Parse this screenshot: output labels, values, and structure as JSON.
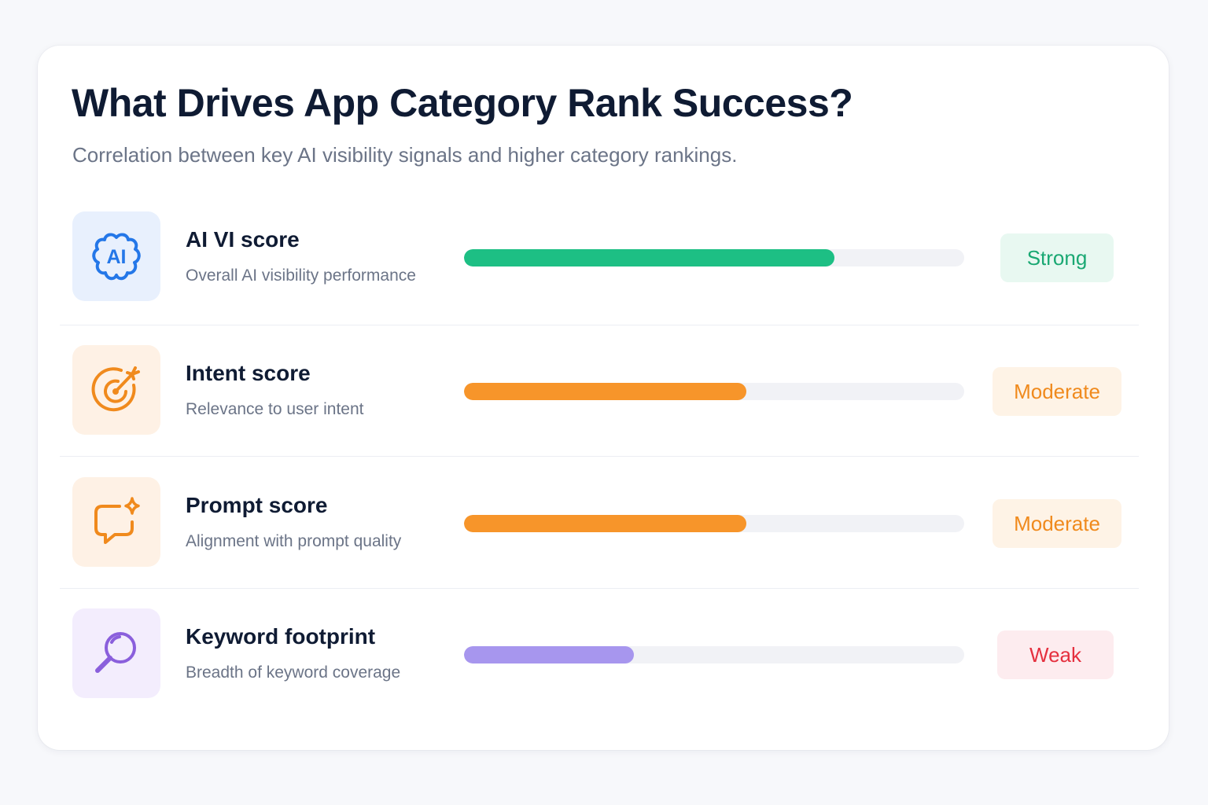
{
  "colors": {
    "strong": "#1dbf84",
    "moderate": "#f7952a",
    "weak": "#a796ee"
  },
  "chart_data": {
    "type": "bar",
    "orientation": "horizontal",
    "title": "What Drives App Category Rank Success?",
    "subtitle": "Correlation between key AI visibility signals and higher category rankings.",
    "xlim": [
      0,
      1
    ],
    "items": [
      {
        "name": "AI VI score",
        "description": "Overall AI visibility performance",
        "value": 0.74,
        "strength": "Strong",
        "icon": "ai-brain-icon",
        "bar_color": "#1dbf84",
        "badge_bg": "#e8f8f1",
        "badge_text_color": "#1aa873",
        "tile_bg": "#e8f0fd",
        "icon_color": "#2477e8"
      },
      {
        "name": "Intent score",
        "description": "Relevance to user intent",
        "value": 0.565,
        "strength": "Moderate",
        "icon": "target-icon",
        "bar_color": "#f7952a",
        "badge_bg": "#fef3e6",
        "badge_text_color": "#f08a1d",
        "tile_bg": "#fef1e5",
        "icon_color": "#f08a1d"
      },
      {
        "name": "Prompt score",
        "description": "Alignment with prompt quality",
        "value": 0.565,
        "strength": "Moderate",
        "icon": "chat-sparkle-icon",
        "bar_color": "#f7952a",
        "badge_bg": "#fef3e6",
        "badge_text_color": "#f08a1d",
        "tile_bg": "#fef1e5",
        "icon_color": "#f08a1d"
      },
      {
        "name": "Keyword footprint",
        "description": "Breadth of keyword coverage",
        "value": 0.34,
        "strength": "Weak",
        "icon": "search-icon",
        "bar_color": "#a796ee",
        "badge_bg": "#fdecef",
        "badge_text_color": "#e5303f",
        "tile_bg": "#f3edfd",
        "icon_color": "#8a5fdc"
      }
    ]
  }
}
